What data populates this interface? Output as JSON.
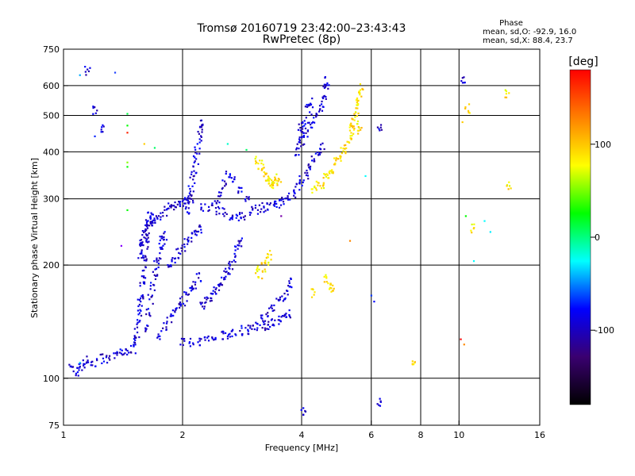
{
  "chart_data": {
    "type": "scatter",
    "title": "Tromsø 20160719 23:42:00–23:43:43",
    "subtitle": "RwPretec (8p)",
    "xlabel": "Frequency [MHz]",
    "ylabel": "Stationary phase Virtual Height [km]",
    "x_scale": "log",
    "y_scale": "log",
    "xlim": [
      1,
      16
    ],
    "ylim": [
      75,
      750
    ],
    "xticks": [
      1,
      2,
      4,
      6,
      8,
      10,
      16
    ],
    "yticks": [
      75,
      100,
      200,
      300,
      400,
      500,
      600,
      750
    ],
    "x_gridlines": [
      2,
      4,
      6,
      8,
      10
    ],
    "y_gridlines": [
      100,
      200,
      300,
      400,
      500,
      600
    ],
    "grid": true,
    "phase_stats": {
      "heading": "Phase",
      "line1": "mean, sd,O:  -92.9, 16.0",
      "line2": "mean, sd,X:  88.4, 23.7"
    },
    "colorbar": {
      "label": "[deg]",
      "range": [
        -180,
        180
      ],
      "ticks": [
        100,
        0,
        -100
      ],
      "colormap": [
        "#000000",
        "#3a0070",
        "#0000ff",
        "#00ffff",
        "#00ff00",
        "#ffff00",
        "#ff8000",
        "#ff0000"
      ]
    },
    "series": [
      {
        "mode": "O",
        "mean_phase": -92.9,
        "points": [
          [
            1.05,
            106
          ],
          [
            1.08,
            104
          ],
          [
            1.1,
            108
          ],
          [
            1.13,
            109
          ],
          [
            1.16,
            111
          ],
          [
            1.2,
            110
          ],
          [
            1.25,
            113
          ],
          [
            1.3,
            112
          ],
          [
            1.35,
            115
          ],
          [
            1.4,
            116
          ],
          [
            1.45,
            118
          ],
          [
            1.5,
            120
          ],
          [
            1.52,
            125
          ],
          [
            1.53,
            132
          ],
          [
            1.54,
            140
          ],
          [
            1.55,
            148
          ],
          [
            1.56,
            158
          ],
          [
            1.57,
            168
          ],
          [
            1.58,
            178
          ],
          [
            1.59,
            190
          ],
          [
            1.6,
            202
          ],
          [
            1.61,
            215
          ],
          [
            1.62,
            228
          ],
          [
            1.63,
            242
          ],
          [
            1.64,
            256
          ],
          [
            1.65,
            270
          ],
          [
            1.56,
            215
          ],
          [
            1.57,
            225
          ],
          [
            1.58,
            235
          ],
          [
            1.6,
            245
          ],
          [
            1.62,
            250
          ],
          [
            1.65,
            258
          ],
          [
            1.68,
            262
          ],
          [
            1.62,
            135
          ],
          [
            1.64,
            150
          ],
          [
            1.66,
            162
          ],
          [
            1.68,
            175
          ],
          [
            1.7,
            188
          ],
          [
            1.72,
            200
          ],
          [
            1.74,
            212
          ],
          [
            1.76,
            222
          ],
          [
            1.78,
            232
          ],
          [
            1.8,
            240
          ],
          [
            1.7,
            265
          ],
          [
            1.75,
            272
          ],
          [
            1.8,
            278
          ],
          [
            1.85,
            284
          ],
          [
            1.9,
            288
          ],
          [
            1.95,
            292
          ],
          [
            2.0,
            295
          ],
          [
            2.05,
            300
          ],
          [
            2.1,
            298
          ],
          [
            1.75,
            130
          ],
          [
            1.8,
            138
          ],
          [
            1.85,
            145
          ],
          [
            1.9,
            150
          ],
          [
            1.95,
            155
          ],
          [
            2.0,
            160
          ],
          [
            2.05,
            165
          ],
          [
            2.1,
            172
          ],
          [
            2.15,
            178
          ],
          [
            2.2,
            185
          ],
          [
            1.85,
            200
          ],
          [
            1.9,
            208
          ],
          [
            1.95,
            215
          ],
          [
            2.0,
            222
          ],
          [
            2.05,
            230
          ],
          [
            2.1,
            238
          ],
          [
            2.15,
            245
          ],
          [
            2.2,
            250
          ],
          [
            2.05,
            280
          ],
          [
            2.08,
            300
          ],
          [
            2.1,
            320
          ],
          [
            2.12,
            340
          ],
          [
            2.14,
            360
          ],
          [
            2.16,
            380
          ],
          [
            2.18,
            400
          ],
          [
            2.2,
            430
          ],
          [
            2.22,
            460
          ],
          [
            2.24,
            480
          ],
          [
            2.25,
            286
          ],
          [
            2.35,
            284
          ],
          [
            2.45,
            280
          ],
          [
            2.55,
            276
          ],
          [
            2.65,
            272
          ],
          [
            2.75,
            270
          ],
          [
            2.85,
            268
          ],
          [
            2.0,
            125
          ],
          [
            2.1,
            124
          ],
          [
            2.2,
            125
          ],
          [
            2.3,
            126
          ],
          [
            2.4,
            128
          ],
          [
            2.5,
            130
          ],
          [
            2.6,
            131
          ],
          [
            2.7,
            133
          ],
          [
            2.8,
            134
          ],
          [
            2.9,
            135
          ],
          [
            3.0,
            136
          ],
          [
            3.1,
            137
          ],
          [
            3.2,
            138
          ],
          [
            3.3,
            139
          ],
          [
            3.4,
            140
          ],
          [
            3.5,
            142
          ],
          [
            3.6,
            145
          ],
          [
            3.7,
            148
          ],
          [
            2.25,
            155
          ],
          [
            2.3,
            160
          ],
          [
            2.35,
            165
          ],
          [
            2.4,
            170
          ],
          [
            2.45,
            176
          ],
          [
            2.5,
            182
          ],
          [
            2.55,
            188
          ],
          [
            2.6,
            194
          ],
          [
            2.65,
            200
          ],
          [
            2.7,
            210
          ],
          [
            2.75,
            220
          ],
          [
            2.8,
            230
          ],
          [
            2.6,
            350
          ],
          [
            2.55,
            330
          ],
          [
            2.5,
            310
          ],
          [
            2.45,
            300
          ],
          [
            2.7,
            340
          ],
          [
            2.8,
            320
          ],
          [
            2.9,
            300
          ],
          [
            3.0,
            280
          ],
          [
            3.1,
            282
          ],
          [
            3.2,
            284
          ],
          [
            3.3,
            286
          ],
          [
            3.4,
            288
          ],
          [
            3.5,
            292
          ],
          [
            3.6,
            296
          ],
          [
            3.7,
            302
          ],
          [
            3.8,
            310
          ],
          [
            3.9,
            322
          ],
          [
            4.0,
            335
          ],
          [
            4.1,
            350
          ],
          [
            4.2,
            365
          ],
          [
            4.3,
            380
          ],
          [
            4.4,
            395
          ],
          [
            4.5,
            410
          ],
          [
            3.2,
            145
          ],
          [
            3.3,
            150
          ],
          [
            3.4,
            155
          ],
          [
            3.5,
            160
          ],
          [
            3.6,
            165
          ],
          [
            3.7,
            172
          ],
          [
            3.75,
            180
          ],
          [
            4.0,
            430
          ],
          [
            4.1,
            450
          ],
          [
            4.2,
            470
          ],
          [
            4.3,
            490
          ],
          [
            4.4,
            510
          ],
          [
            4.5,
            530
          ],
          [
            4.55,
            560
          ],
          [
            4.6,
            590
          ],
          [
            4.62,
            620
          ],
          [
            3.9,
            400
          ],
          [
            3.95,
            420
          ],
          [
            4.0,
            450
          ],
          [
            4.05,
            480
          ],
          [
            3.98,
            470
          ],
          [
            4.15,
            520
          ],
          [
            4.25,
            540
          ],
          [
            1.15,
            660
          ],
          [
            1.2,
            520
          ],
          [
            1.25,
            460
          ],
          [
            4.05,
            82
          ],
          [
            6.3,
            86
          ],
          [
            10.2,
            620
          ],
          [
            6.3,
            465
          ]
        ]
      },
      {
        "mode": "X",
        "mean_phase": 88.4,
        "points": [
          [
            3.1,
            380
          ],
          [
            3.15,
            370
          ],
          [
            3.2,
            355
          ],
          [
            3.25,
            345
          ],
          [
            3.3,
            335
          ],
          [
            3.35,
            330
          ],
          [
            3.4,
            330
          ],
          [
            3.45,
            335
          ],
          [
            3.5,
            340
          ],
          [
            3.1,
            195
          ],
          [
            3.15,
            190
          ],
          [
            3.2,
            198
          ],
          [
            3.25,
            205
          ],
          [
            3.3,
            212
          ],
          [
            4.3,
            320
          ],
          [
            4.4,
            325
          ],
          [
            4.5,
            330
          ],
          [
            4.6,
            340
          ],
          [
            4.7,
            350
          ],
          [
            4.8,
            360
          ],
          [
            4.9,
            375
          ],
          [
            5.0,
            390
          ],
          [
            5.1,
            405
          ],
          [
            5.2,
            420
          ],
          [
            5.3,
            440
          ],
          [
            5.35,
            460
          ],
          [
            5.4,
            480
          ],
          [
            5.45,
            500
          ],
          [
            5.5,
            520
          ],
          [
            5.55,
            540
          ],
          [
            5.6,
            560
          ],
          [
            5.65,
            590
          ],
          [
            5.5,
            455
          ],
          [
            5.6,
            470
          ],
          [
            4.6,
            185
          ],
          [
            4.7,
            178
          ],
          [
            4.8,
            172
          ],
          [
            4.3,
            168
          ],
          [
            10.5,
            520
          ],
          [
            13.2,
            570
          ],
          [
            13.4,
            325
          ],
          [
            10.8,
            250
          ],
          [
            7.7,
            108
          ]
        ]
      }
    ],
    "stray_points": [
      [
        1.1,
        640,
        "#00aaff"
      ],
      [
        1.35,
        650,
        "#2244ff"
      ],
      [
        1.45,
        505,
        "#00ff44"
      ],
      [
        1.45,
        470,
        "#00ff00"
      ],
      [
        1.45,
        450,
        "#ff2200"
      ],
      [
        1.45,
        375,
        "#88ff00"
      ],
      [
        1.45,
        365,
        "#00ff00"
      ],
      [
        1.45,
        280,
        "#00ff00"
      ],
      [
        1.6,
        420,
        "#ffcc00"
      ],
      [
        1.7,
        410,
        "#00ff66"
      ],
      [
        2.6,
        420,
        "#00ffcc"
      ],
      [
        2.9,
        405,
        "#00ff66"
      ],
      [
        3.2,
        370,
        "#ffff00"
      ],
      [
        3.55,
        270,
        "#7700aa"
      ],
      [
        5.3,
        232,
        "#ff8800"
      ],
      [
        5.8,
        345,
        "#00ffff"
      ],
      [
        10.2,
        480,
        "#ffcc00"
      ],
      [
        10.4,
        270,
        "#00ff00"
      ],
      [
        11.6,
        262,
        "#00ffff"
      ],
      [
        12.0,
        245,
        "#00eeff"
      ],
      [
        10.9,
        205,
        "#00ffff"
      ],
      [
        10.1,
        127,
        "#ff0000"
      ],
      [
        10.3,
        123,
        "#ff8800"
      ],
      [
        1.4,
        225,
        "#8800ff"
      ],
      [
        1.2,
        440,
        "#0022ff"
      ],
      [
        6.0,
        166,
        "#0033ff"
      ],
      [
        6.1,
        160,
        "#0000ff"
      ],
      [
        1.1,
        110,
        "#00ccff"
      ]
    ]
  }
}
